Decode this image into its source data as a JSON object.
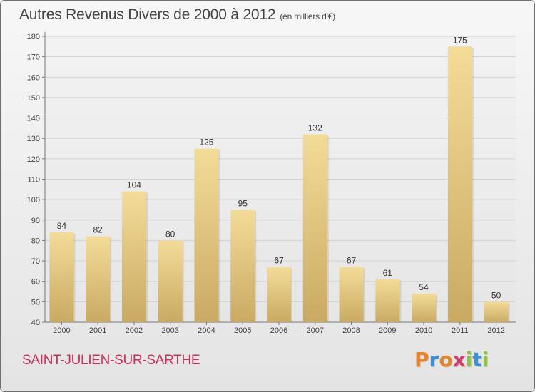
{
  "chart_data": {
    "type": "bar",
    "title": "Autres Revenus Divers de 2000 à 2012",
    "subtitle": "(en milliers d'€)",
    "categories": [
      "2000",
      "2001",
      "2002",
      "2003",
      "2004",
      "2005",
      "2006",
      "2007",
      "2008",
      "2009",
      "2010",
      "2011",
      "2012"
    ],
    "values": [
      84,
      82,
      104,
      80,
      125,
      95,
      67,
      132,
      67,
      61,
      54,
      175,
      50
    ],
    "ylim": [
      40,
      180
    ],
    "yticks": [
      40,
      50,
      60,
      70,
      80,
      90,
      100,
      110,
      120,
      130,
      140,
      150,
      160,
      170,
      180
    ],
    "grid": true,
    "bar_color": "#e8cc85"
  },
  "footer": {
    "commune": "SAINT-JULIEN-SUR-SARTHE",
    "logo_letters": [
      {
        "char": "P",
        "color": "#e8832a"
      },
      {
        "char": "r",
        "color": "#3a8fd6"
      },
      {
        "char": "o",
        "color": "#e8832a"
      },
      {
        "char": "x",
        "color": "#d73a6a"
      },
      {
        "char": "i",
        "color": "#8cc43f"
      },
      {
        "char": "t",
        "color": "#3a8fd6"
      },
      {
        "char": "i",
        "color": "#8cc43f"
      }
    ]
  }
}
